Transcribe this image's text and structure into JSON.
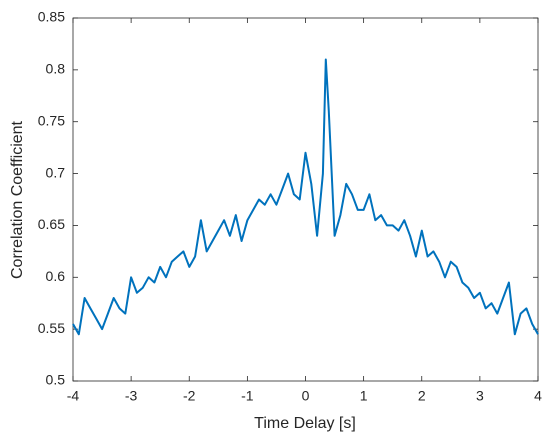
{
  "chart_data": {
    "type": "line",
    "x_label": "Time Delay [s]",
    "y_label": "Correlation Coefficient",
    "x": [
      -4.0,
      -3.9,
      -3.8,
      -3.7,
      -3.6,
      -3.5,
      -3.4,
      -3.3,
      -3.2,
      -3.1,
      -3.0,
      -2.9,
      -2.8,
      -2.7,
      -2.6,
      -2.5,
      -2.4,
      -2.3,
      -2.2,
      -2.1,
      -2.0,
      -1.9,
      -1.8,
      -1.7,
      -1.6,
      -1.5,
      -1.4,
      -1.3,
      -1.2,
      -1.1,
      -1.0,
      -0.9,
      -0.8,
      -0.7,
      -0.6,
      -0.5,
      -0.4,
      -0.3,
      -0.2,
      -0.1,
      0.0,
      0.1,
      0.2,
      0.3,
      0.35,
      0.4,
      0.5,
      0.6,
      0.7,
      0.8,
      0.9,
      1.0,
      1.1,
      1.2,
      1.3,
      1.4,
      1.5,
      1.6,
      1.7,
      1.8,
      1.9,
      2.0,
      2.1,
      2.2,
      2.3,
      2.4,
      2.5,
      2.6,
      2.7,
      2.8,
      2.9,
      3.0,
      3.1,
      3.2,
      3.3,
      3.4,
      3.5,
      3.6,
      3.7,
      3.8,
      3.9,
      4.0
    ],
    "series": [
      {
        "color": "#0072bd",
        "values": [
          0.555,
          0.545,
          0.58,
          0.57,
          0.56,
          0.55,
          0.565,
          0.58,
          0.57,
          0.565,
          0.6,
          0.585,
          0.59,
          0.6,
          0.595,
          0.61,
          0.6,
          0.615,
          0.62,
          0.625,
          0.61,
          0.62,
          0.655,
          0.625,
          0.635,
          0.645,
          0.655,
          0.64,
          0.66,
          0.635,
          0.655,
          0.665,
          0.675,
          0.67,
          0.68,
          0.67,
          0.685,
          0.7,
          0.68,
          0.675,
          0.72,
          0.69,
          0.64,
          0.7,
          0.81,
          0.76,
          0.64,
          0.66,
          0.69,
          0.68,
          0.665,
          0.665,
          0.68,
          0.655,
          0.66,
          0.65,
          0.65,
          0.645,
          0.655,
          0.64,
          0.62,
          0.645,
          0.62,
          0.625,
          0.615,
          0.6,
          0.615,
          0.61,
          0.595,
          0.59,
          0.58,
          0.585,
          0.57,
          0.575,
          0.565,
          0.58,
          0.595,
          0.545,
          0.565,
          0.57,
          0.555,
          0.545
        ]
      }
    ],
    "xlim": [
      -4,
      4
    ],
    "ylim": [
      0.5,
      0.85
    ],
    "xticks": [
      -4,
      -3,
      -2,
      -1,
      0,
      1,
      2,
      3,
      4
    ],
    "yticks": [
      0.5,
      0.55,
      0.6,
      0.65,
      0.7,
      0.75,
      0.8,
      0.85
    ],
    "grid": false
  }
}
